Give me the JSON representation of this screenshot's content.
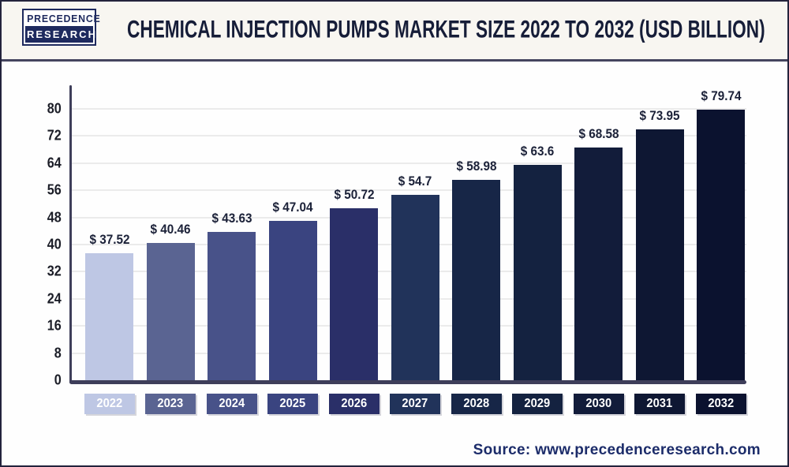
{
  "header": {
    "logo": {
      "line1": "PRECEDENCE",
      "line2": "RESEARCH"
    },
    "title": "CHEMICAL INJECTION PUMPS MARKET SIZE 2022 TO 2032 (USD BILLION)"
  },
  "chart_data": {
    "type": "bar",
    "title": "Chemical Injection Pumps Market Size 2022 to 2032 (USD Billion)",
    "categories": [
      "2022",
      "2023",
      "2024",
      "2025",
      "2026",
      "2027",
      "2028",
      "2029",
      "2030",
      "2031",
      "2032"
    ],
    "values": [
      37.52,
      40.46,
      43.63,
      47.04,
      50.72,
      54.7,
      58.98,
      63.6,
      68.58,
      73.95,
      79.74
    ],
    "value_labels": [
      "$ 37.52",
      "$ 40.46",
      "$ 43.63",
      "$ 47.04",
      "$ 50.72",
      "$ 54.7",
      "$ 58.98",
      "$ 63.6",
      "$ 68.58",
      "$ 73.95",
      "$ 79.74"
    ],
    "bar_colors": [
      "#bec7e4",
      "#5a6492",
      "#485289",
      "#3a4480",
      "#2a2f68",
      "#21335a",
      "#172647",
      "#142240",
      "#121c3a",
      "#0e1733",
      "#0b122f"
    ],
    "xlabel": "",
    "ylabel": "",
    "ylim": [
      0,
      80
    ],
    "yticks": [
      0,
      8,
      16,
      24,
      32,
      40,
      48,
      56,
      64,
      72,
      80
    ],
    "grid": true,
    "legend": "none",
    "currency_prefix": "$",
    "units": "USD Billion"
  },
  "footer": {
    "source": "Source: www.precedenceresearch.com"
  },
  "colors": {
    "header_bg": "#f8f6f1",
    "divider": "#45455f",
    "axis": "#3e3e5a",
    "gridline": "#ebebeb",
    "title_text": "#161d38",
    "value_text": "#1b2138",
    "source_text": "#1c2c6a",
    "logo_navy": "#1e2a5e"
  }
}
